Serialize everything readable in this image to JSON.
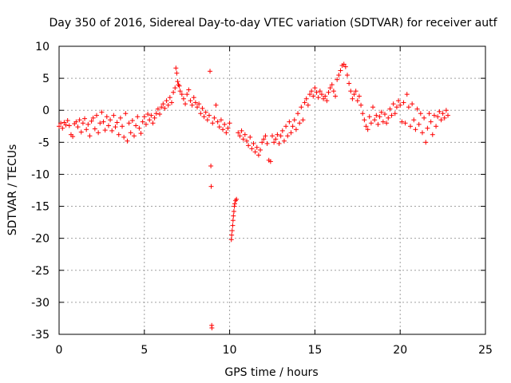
{
  "chart_data": {
    "type": "scatter",
    "title": "Day 350 of 2016, Sidereal Day-to-day VTEC variation (SDTVAR) for receiver autf",
    "xlabel": "GPS time / hours",
    "ylabel": "SDTVAR / TECUs",
    "xlim": [
      0,
      25
    ],
    "ylim": [
      -35,
      10
    ],
    "xticks": [
      0,
      5,
      10,
      15,
      20,
      25
    ],
    "yticks": [
      10,
      5,
      0,
      -5,
      -10,
      -15,
      -20,
      -25,
      -30,
      -35
    ],
    "grid": true,
    "marker": "+",
    "color": "#ff0000",
    "series": [
      {
        "name": "SDTVAR",
        "points": [
          [
            0.0,
            -2.5
          ],
          [
            0.1,
            -2.0
          ],
          [
            0.2,
            -2.8
          ],
          [
            0.3,
            -1.9
          ],
          [
            0.4,
            -2.3
          ],
          [
            0.5,
            -1.6
          ],
          [
            0.6,
            -2.4
          ],
          [
            0.7,
            -3.8
          ],
          [
            0.8,
            -4.1
          ],
          [
            0.9,
            -2.1
          ],
          [
            1.0,
            -1.8
          ],
          [
            1.1,
            -2.6
          ],
          [
            1.2,
            -1.5
          ],
          [
            1.3,
            -3.4
          ],
          [
            1.4,
            -2.0
          ],
          [
            1.5,
            -1.3
          ],
          [
            1.6,
            -3.0
          ],
          [
            1.7,
            -2.2
          ],
          [
            1.8,
            -4.0
          ],
          [
            1.9,
            -1.7
          ],
          [
            2.0,
            -1.2
          ],
          [
            2.1,
            -2.9
          ],
          [
            2.2,
            -0.8
          ],
          [
            2.3,
            -3.5
          ],
          [
            2.4,
            -2.0
          ],
          [
            2.5,
            -0.3
          ],
          [
            2.6,
            -1.8
          ],
          [
            2.7,
            -3.1
          ],
          [
            2.8,
            -1.0
          ],
          [
            2.9,
            -2.4
          ],
          [
            3.0,
            -1.5
          ],
          [
            3.1,
            -3.2
          ],
          [
            3.2,
            -0.8
          ],
          [
            3.3,
            -2.6
          ],
          [
            3.4,
            -1.9
          ],
          [
            3.5,
            -3.8
          ],
          [
            3.6,
            -1.2
          ],
          [
            3.7,
            -2.5
          ],
          [
            3.8,
            -4.2
          ],
          [
            3.9,
            -0.5
          ],
          [
            4.0,
            -4.8
          ],
          [
            4.1,
            -2.0
          ],
          [
            4.2,
            -3.5
          ],
          [
            4.3,
            -1.6
          ],
          [
            4.4,
            -4.0
          ],
          [
            4.5,
            -2.4
          ],
          [
            4.6,
            -1.0
          ],
          [
            4.7,
            -2.8
          ],
          [
            4.8,
            -3.6
          ],
          [
            4.9,
            -1.8
          ],
          [
            5.0,
            -1.0
          ],
          [
            5.1,
            -2.2
          ],
          [
            5.2,
            -0.6
          ],
          [
            5.3,
            -1.5
          ],
          [
            5.4,
            -0.8
          ],
          [
            5.5,
            -2.0
          ],
          [
            5.6,
            -1.2
          ],
          [
            5.7,
            -0.5
          ],
          [
            5.8,
            0.2
          ],
          [
            5.9,
            -0.6
          ],
          [
            6.0,
            0.5
          ],
          [
            6.1,
            1.0
          ],
          [
            6.2,
            0.3
          ],
          [
            6.3,
            1.5
          ],
          [
            6.4,
            0.8
          ],
          [
            6.5,
            2.0
          ],
          [
            6.6,
            1.2
          ],
          [
            6.7,
            2.8
          ],
          [
            6.8,
            3.5
          ],
          [
            6.85,
            6.6
          ],
          [
            6.9,
            5.8
          ],
          [
            6.95,
            4.5
          ],
          [
            7.0,
            4.0
          ],
          [
            7.05,
            3.8
          ],
          [
            7.1,
            3.0
          ],
          [
            7.2,
            2.5
          ],
          [
            7.3,
            1.8
          ],
          [
            7.4,
            1.0
          ],
          [
            7.5,
            2.5
          ],
          [
            7.6,
            3.2
          ],
          [
            7.7,
            1.5
          ],
          [
            7.8,
            0.8
          ],
          [
            7.9,
            2.0
          ],
          [
            8.0,
            1.2
          ],
          [
            8.1,
            0.5
          ],
          [
            8.2,
            1.0
          ],
          [
            8.3,
            -0.5
          ],
          [
            8.4,
            0.3
          ],
          [
            8.5,
            -1.0
          ],
          [
            8.6,
            -0.3
          ],
          [
            8.7,
            -1.5
          ],
          [
            8.8,
            -0.8
          ],
          [
            8.85,
            6.1
          ],
          [
            8.9,
            -8.7
          ],
          [
            8.92,
            -11.9
          ],
          [
            8.95,
            -33.6
          ],
          [
            8.96,
            -34.0
          ],
          [
            9.0,
            -2.0
          ],
          [
            9.1,
            -1.2
          ],
          [
            9.2,
            0.8
          ],
          [
            9.3,
            -1.8
          ],
          [
            9.4,
            -2.6
          ],
          [
            9.5,
            -1.5
          ],
          [
            9.6,
            -3.0
          ],
          [
            9.7,
            -2.2
          ],
          [
            9.8,
            -3.5
          ],
          [
            9.9,
            -2.8
          ],
          [
            10.0,
            -2.0
          ],
          [
            10.1,
            -20.2
          ],
          [
            10.12,
            -19.5
          ],
          [
            10.15,
            -18.8
          ],
          [
            10.18,
            -18.0
          ],
          [
            10.2,
            -17.2
          ],
          [
            10.22,
            -16.5
          ],
          [
            10.25,
            -15.8
          ],
          [
            10.28,
            -15.0
          ],
          [
            10.3,
            -14.6
          ],
          [
            10.35,
            -14.1
          ],
          [
            10.4,
            -13.9
          ],
          [
            10.5,
            -3.5
          ],
          [
            10.6,
            -4.0
          ],
          [
            10.7,
            -3.2
          ],
          [
            10.8,
            -4.5
          ],
          [
            10.9,
            -3.8
          ],
          [
            11.0,
            -4.8
          ],
          [
            11.1,
            -5.5
          ],
          [
            11.2,
            -4.2
          ],
          [
            11.3,
            -6.0
          ],
          [
            11.4,
            -5.2
          ],
          [
            11.5,
            -6.5
          ],
          [
            11.6,
            -5.8
          ],
          [
            11.7,
            -7.0
          ],
          [
            11.8,
            -6.2
          ],
          [
            11.9,
            -5.0
          ],
          [
            12.0,
            -4.5
          ],
          [
            12.1,
            -4.0
          ],
          [
            12.2,
            -5.2
          ],
          [
            12.3,
            -7.8
          ],
          [
            12.4,
            -8.0
          ],
          [
            12.5,
            -4.0
          ],
          [
            12.6,
            -5.0
          ],
          [
            12.7,
            -4.5
          ],
          [
            12.8,
            -3.8
          ],
          [
            12.9,
            -5.2
          ],
          [
            13.0,
            -4.0
          ],
          [
            13.1,
            -3.2
          ],
          [
            13.2,
            -4.8
          ],
          [
            13.3,
            -2.5
          ],
          [
            13.4,
            -4.0
          ],
          [
            13.5,
            -1.8
          ],
          [
            13.6,
            -3.5
          ],
          [
            13.7,
            -2.5
          ],
          [
            13.8,
            -1.5
          ],
          [
            13.9,
            -3.0
          ],
          [
            14.0,
            -0.5
          ],
          [
            14.1,
            -2.0
          ],
          [
            14.2,
            0.5
          ],
          [
            14.3,
            -1.5
          ],
          [
            14.4,
            1.2
          ],
          [
            14.5,
            1.8
          ],
          [
            14.6,
            0.8
          ],
          [
            14.7,
            2.5
          ],
          [
            14.8,
            3.0
          ],
          [
            14.9,
            2.2
          ],
          [
            15.0,
            3.5
          ],
          [
            15.1,
            2.8
          ],
          [
            15.2,
            2.0
          ],
          [
            15.3,
            3.0
          ],
          [
            15.4,
            2.5
          ],
          [
            15.5,
            1.8
          ],
          [
            15.6,
            2.2
          ],
          [
            15.7,
            1.5
          ],
          [
            15.8,
            2.8
          ],
          [
            15.9,
            3.5
          ],
          [
            16.0,
            4.0
          ],
          [
            16.1,
            3.0
          ],
          [
            16.2,
            2.2
          ],
          [
            16.3,
            4.8
          ],
          [
            16.4,
            5.5
          ],
          [
            16.5,
            6.2
          ],
          [
            16.6,
            7.0
          ],
          [
            16.7,
            7.2
          ],
          [
            16.8,
            6.8
          ],
          [
            16.9,
            5.5
          ],
          [
            17.0,
            4.2
          ],
          [
            17.1,
            3.0
          ],
          [
            17.2,
            1.8
          ],
          [
            17.3,
            2.5
          ],
          [
            17.4,
            3.0
          ],
          [
            17.5,
            1.5
          ],
          [
            17.6,
            2.2
          ],
          [
            17.7,
            0.8
          ],
          [
            17.8,
            -0.5
          ],
          [
            17.9,
            -1.5
          ],
          [
            18.0,
            -2.5
          ],
          [
            18.1,
            -3.0
          ],
          [
            18.2,
            -1.0
          ],
          [
            18.3,
            -2.0
          ],
          [
            18.4,
            0.5
          ],
          [
            18.5,
            -1.5
          ],
          [
            18.6,
            -0.8
          ],
          [
            18.7,
            -2.2
          ],
          [
            18.8,
            -1.0
          ],
          [
            18.9,
            -0.3
          ],
          [
            19.0,
            -1.8
          ],
          [
            19.1,
            -0.6
          ],
          [
            19.2,
            -2.0
          ],
          [
            19.3,
            -1.2
          ],
          [
            19.4,
            0.2
          ],
          [
            19.5,
            -0.8
          ],
          [
            19.6,
            1.0
          ],
          [
            19.7,
            -0.5
          ],
          [
            19.8,
            0.5
          ],
          [
            19.9,
            1.5
          ],
          [
            20.0,
            0.8
          ],
          [
            20.1,
            -1.8
          ],
          [
            20.2,
            1.2
          ],
          [
            20.3,
            -2.0
          ],
          [
            20.4,
            2.5
          ],
          [
            20.5,
            0.5
          ],
          [
            20.6,
            -2.5
          ],
          [
            20.7,
            1.0
          ],
          [
            20.8,
            -1.5
          ],
          [
            20.9,
            -3.0
          ],
          [
            21.0,
            0.2
          ],
          [
            21.1,
            -2.2
          ],
          [
            21.2,
            -0.5
          ],
          [
            21.3,
            -3.5
          ],
          [
            21.4,
            -1.2
          ],
          [
            21.5,
            -5.0
          ],
          [
            21.6,
            -2.8
          ],
          [
            21.7,
            -0.5
          ],
          [
            21.8,
            -1.8
          ],
          [
            21.9,
            -3.8
          ],
          [
            22.0,
            -0.8
          ],
          [
            22.1,
            -2.5
          ],
          [
            22.2,
            -1.0
          ],
          [
            22.3,
            -0.2
          ],
          [
            22.4,
            -1.5
          ],
          [
            22.5,
            -0.5
          ],
          [
            22.6,
            -1.2
          ],
          [
            22.7,
            0.0
          ],
          [
            22.8,
            -0.8
          ]
        ]
      }
    ]
  }
}
